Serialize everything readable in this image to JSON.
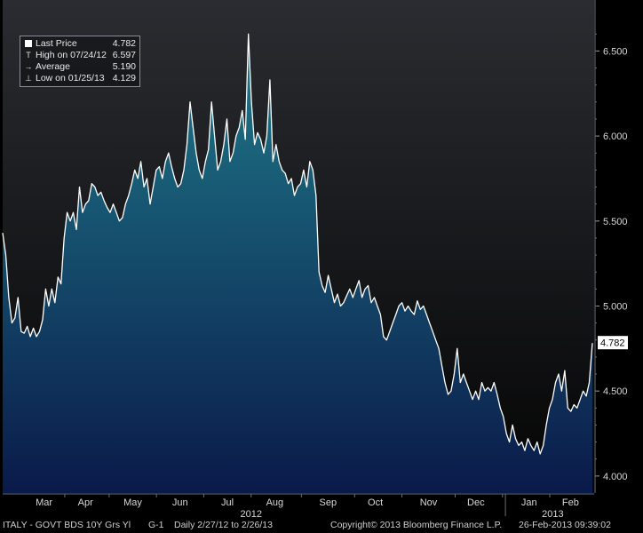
{
  "chart_data": {
    "type": "area",
    "ylim": [
      3.9,
      6.8
    ],
    "yticks": [
      "4.000",
      "4.500",
      "5.000",
      "5.500",
      "6.000",
      "6.500"
    ],
    "months": [
      {
        "label": "Mar",
        "pos": 0.07
      },
      {
        "label": "Apr",
        "pos": 0.14
      },
      {
        "label": "May",
        "pos": 0.22
      },
      {
        "label": "Jun",
        "pos": 0.3
      },
      {
        "label": "Jul",
        "pos": 0.38
      },
      {
        "label": "Aug",
        "pos": 0.46
      },
      {
        "label": "Sep",
        "pos": 0.55
      },
      {
        "label": "Oct",
        "pos": 0.63
      },
      {
        "label": "Nov",
        "pos": 0.72
      },
      {
        "label": "Dec",
        "pos": 0.8
      },
      {
        "label": "Jan",
        "pos": 0.89
      },
      {
        "label": "Feb",
        "pos": 0.96
      }
    ],
    "years": [
      {
        "label": "2012",
        "pos": 0.42
      },
      {
        "label": "2013",
        "pos": 0.93
      }
    ],
    "legend": [
      {
        "label": "Last Price",
        "value": "4.782",
        "marker": "box"
      },
      {
        "label": "High on 07/24/12",
        "value": "6.597",
        "marker": "T"
      },
      {
        "label": "Average",
        "value": "5.190",
        "marker": "-+-"
      },
      {
        "label": "Low on 01/25/13",
        "value": "4.129",
        "marker": "⊥"
      }
    ],
    "last_value_label": "4.782",
    "last_value": 4.782,
    "series": [
      {
        "values": [
          5.43,
          5.3,
          5.05,
          4.9,
          4.93,
          5.05,
          4.85,
          4.84,
          4.88,
          4.82,
          4.87,
          4.82,
          4.85,
          4.92,
          5.1,
          5.0,
          5.1,
          5.02,
          5.17,
          5.13,
          5.4,
          5.55,
          5.5,
          5.55,
          5.45,
          5.7,
          5.55,
          5.6,
          5.62,
          5.72,
          5.7,
          5.65,
          5.67,
          5.62,
          5.58,
          5.55,
          5.6,
          5.55,
          5.5,
          5.52,
          5.6,
          5.65,
          5.72,
          5.8,
          5.75,
          5.85,
          5.7,
          5.75,
          5.6,
          5.7,
          5.8,
          5.82,
          5.75,
          5.85,
          5.9,
          5.82,
          5.75,
          5.7,
          5.72,
          5.8,
          5.95,
          6.2,
          6.05,
          5.9,
          5.8,
          5.75,
          5.85,
          5.92,
          6.2,
          6.0,
          5.8,
          5.85,
          5.95,
          6.1,
          5.85,
          5.9,
          6.0,
          6.05,
          6.15,
          5.98,
          6.6,
          6.2,
          5.95,
          6.02,
          5.98,
          5.9,
          6.0,
          6.33,
          5.85,
          5.95,
          5.85,
          5.8,
          5.78,
          5.72,
          5.75,
          5.65,
          5.7,
          5.72,
          5.8,
          5.7,
          5.85,
          5.8,
          5.65,
          5.2,
          5.12,
          5.08,
          5.18,
          5.1,
          5.02,
          5.07,
          5.0,
          5.02,
          5.06,
          5.1,
          5.05,
          5.1,
          5.15,
          5.05,
          5.1,
          5.12,
          5.02,
          5.05,
          5.0,
          4.95,
          4.82,
          4.8,
          4.85,
          4.9,
          4.95,
          5.0,
          5.02,
          4.97,
          5.0,
          4.97,
          4.95,
          5.03,
          4.98,
          5.0,
          4.95,
          4.9,
          4.85,
          4.8,
          4.75,
          4.65,
          4.55,
          4.48,
          4.5,
          4.6,
          4.75,
          4.55,
          4.6,
          4.55,
          4.5,
          4.45,
          4.5,
          4.45,
          4.55,
          4.5,
          4.52,
          4.5,
          4.55,
          4.48,
          4.4,
          4.35,
          4.25,
          4.2,
          4.3,
          4.22,
          4.18,
          4.2,
          4.15,
          4.22,
          4.18,
          4.15,
          4.2,
          4.13,
          4.18,
          4.3,
          4.4,
          4.45,
          4.55,
          4.6,
          4.5,
          4.62,
          4.4,
          4.38,
          4.42,
          4.4,
          4.45,
          4.5,
          4.47,
          4.55,
          4.782
        ]
      }
    ]
  },
  "legend_items": [
    {
      "label": "Last Price",
      "value": "4.782",
      "marker": "box"
    },
    {
      "label": "High on 07/24/12",
      "value": "6.597",
      "marker": "T"
    },
    {
      "label": "Average",
      "value": "5.190",
      "marker": "-+-"
    },
    {
      "label": "Low on 01/25/13",
      "value": "4.129",
      "marker": "⊥"
    }
  ],
  "footer": {
    "security": "ITALY - GOVT BDS 10Y Grs Yl",
    "chart_id": "G-1",
    "period": "Daily  2/27/12 to 2/26/13",
    "copyright": "Copyright© 2013 Bloomberg Finance L.P.",
    "timestamp": "26-Feb-2013 09:39:02"
  },
  "colors": {
    "background": "#000000",
    "plot_top": "#2a2c31",
    "plot_bottom": "#050505",
    "area_top": "#1f7a8a",
    "area_bottom": "#0a1a4a",
    "line": "#ffffff",
    "grid": "#3a3d44",
    "axis_text": "#d8d8d8"
  }
}
